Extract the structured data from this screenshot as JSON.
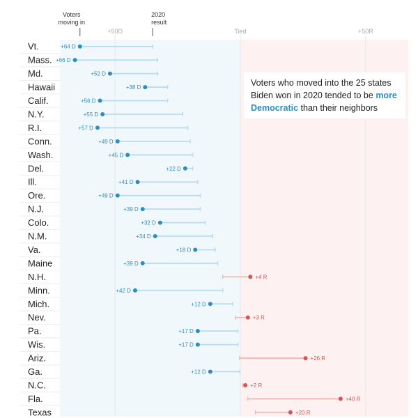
{
  "colors": {
    "dem": "#2e8dbd",
    "dem_light": "#b9dcec",
    "rep": "#d9534f",
    "rep_light": "#f2b8b5",
    "dem_bg": "#f1f8fc",
    "rep_bg": "#fdf2f1"
  },
  "headers": {
    "voters": [
      "Voters",
      "moving in"
    ],
    "result": [
      "2020",
      "result"
    ]
  },
  "annotation": {
    "before": "Voters who moved into the 25 states Biden won in 2020 tended to be ",
    "highlight": "more Democratic",
    "after": " than their neighbors"
  },
  "chart_data": {
    "type": "dot-range",
    "x_axis": {
      "ticks": [
        {
          "value": -50,
          "label": "+50D"
        },
        {
          "value": 0,
          "label": "Tied"
        },
        {
          "value": 50,
          "label": "+50R"
        }
      ],
      "xlim": [
        -72,
        67
      ]
    },
    "series": [
      {
        "name": "Voters moving in",
        "field": "movers"
      },
      {
        "name": "2020 result",
        "field": "result"
      }
    ],
    "rows": [
      {
        "state": "Vt.",
        "movers": -64,
        "result": -35,
        "label": "+64 D"
      },
      {
        "state": "Mass.",
        "movers": -66,
        "result": -33,
        "label": "+66 D"
      },
      {
        "state": "Md.",
        "movers": -52,
        "result": -33,
        "label": "+52 D"
      },
      {
        "state": "Hawaii",
        "movers": -38,
        "result": -29,
        "label": "+38 D"
      },
      {
        "state": "Calif.",
        "movers": -56,
        "result": -29,
        "label": "+56 D"
      },
      {
        "state": "N.Y.",
        "movers": -55,
        "result": -23,
        "label": "+55 D"
      },
      {
        "state": "R.I.",
        "movers": -57,
        "result": -21,
        "label": "+57 D"
      },
      {
        "state": "Conn.",
        "movers": -49,
        "result": -20,
        "label": "+49 D"
      },
      {
        "state": "Wash.",
        "movers": -45,
        "result": -19,
        "label": "+45 D"
      },
      {
        "state": "Del.",
        "movers": -22,
        "result": -19,
        "label": "+22 D"
      },
      {
        "state": "Ill.",
        "movers": -41,
        "result": -17,
        "label": "+41 D"
      },
      {
        "state": "Ore.",
        "movers": -49,
        "result": -16,
        "label": "+49 D"
      },
      {
        "state": "N.J.",
        "movers": -39,
        "result": -16,
        "label": "+39 D"
      },
      {
        "state": "Colo.",
        "movers": -32,
        "result": -14,
        "label": "+32 D"
      },
      {
        "state": "N.M.",
        "movers": -34,
        "result": -11,
        "label": "+34 D"
      },
      {
        "state": "Va.",
        "movers": -18,
        "result": -10,
        "label": "+18 D"
      },
      {
        "state": "Maine",
        "movers": -39,
        "result": -9,
        "label": "+39 D"
      },
      {
        "state": "N.H.",
        "movers": 4,
        "result": -7,
        "label": "+4 R"
      },
      {
        "state": "Minn.",
        "movers": -42,
        "result": -7,
        "label": "+42 D"
      },
      {
        "state": "Mich.",
        "movers": -12,
        "result": -3,
        "label": "+12 D"
      },
      {
        "state": "Nev.",
        "movers": 3,
        "result": -2,
        "label": "+3 R"
      },
      {
        "state": "Pa.",
        "movers": -17,
        "result": -1,
        "label": "+17 D"
      },
      {
        "state": "Wis.",
        "movers": -17,
        "result": -1,
        "label": "+17 D"
      },
      {
        "state": "Ariz.",
        "movers": 26,
        "result": -0.3,
        "label": "+26 R"
      },
      {
        "state": "Ga.",
        "movers": -12,
        "result": -0.2,
        "label": "+12 D"
      },
      {
        "state": "N.C.",
        "movers": 2,
        "result": 1,
        "label": "+2 R"
      },
      {
        "state": "Fla.",
        "movers": 40,
        "result": 3,
        "label": "+40 R"
      },
      {
        "state": "Texas",
        "movers": 20,
        "result": 6,
        "label": "+20 R"
      }
    ]
  }
}
